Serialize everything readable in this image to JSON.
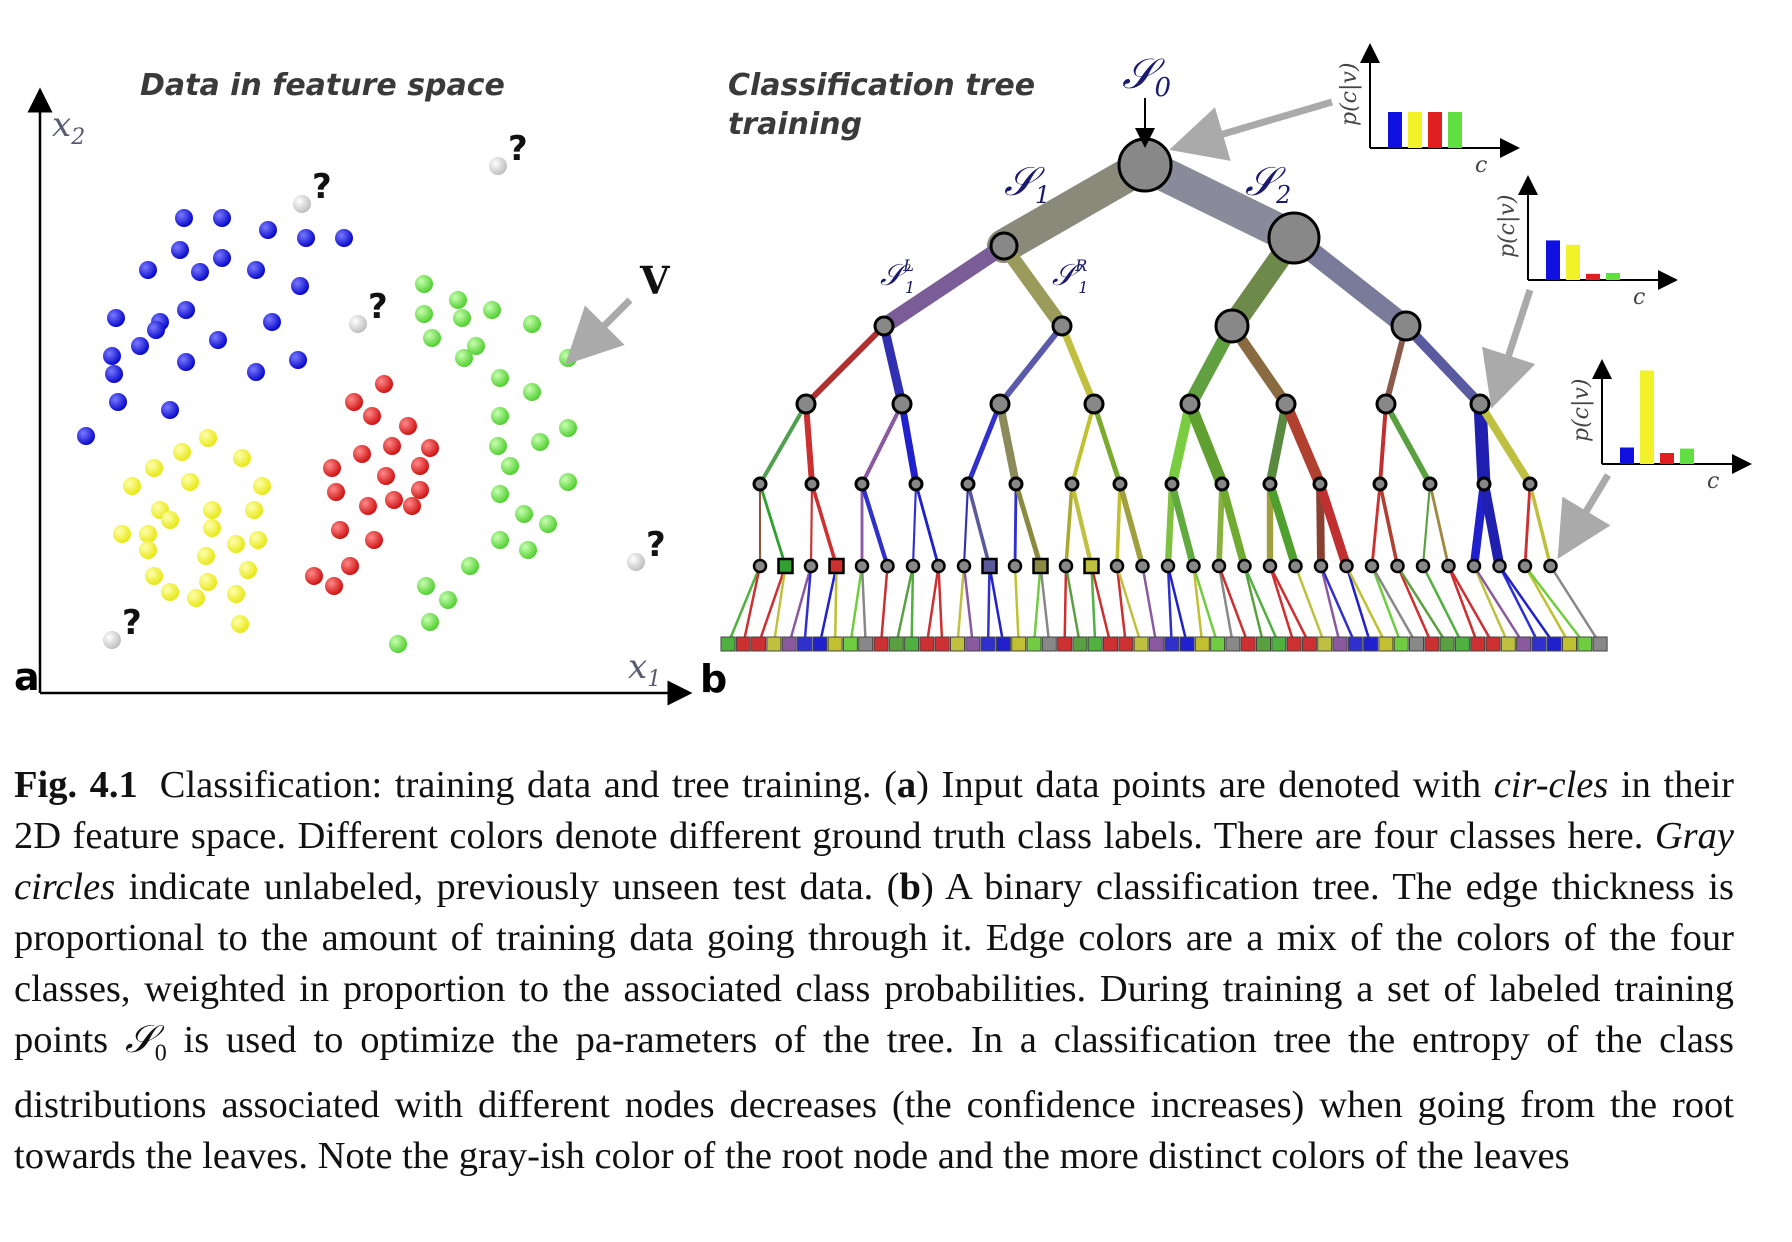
{
  "panel_a": {
    "title": "Data in feature space",
    "label": "a",
    "x_axis_label": "x1",
    "y_axis_label": "x2",
    "vector_label": "V",
    "unlabeled_mark": "?",
    "class_colors": {
      "blue": "#1010e0",
      "red": "#e02020",
      "yellow": "#f2f22a",
      "green": "#70e050",
      "gray": "#d8d8d8"
    }
  },
  "panel_b": {
    "title_line1": "Classification tree",
    "title_line2": "training",
    "label": "b",
    "root_label": "S0",
    "left_child_label": "S1",
    "right_child_label": "S2",
    "left_left_label": "S1L",
    "left_right_label": "S1R",
    "hist_y_label": "p(c|v)",
    "hist_x_label": "c",
    "histograms": [
      {
        "name": "root",
        "values": [
          0.25,
          0.25,
          0.25,
          0.25
        ]
      },
      {
        "name": "internal",
        "values": [
          0.45,
          0.4,
          0.07,
          0.08
        ]
      },
      {
        "name": "leaf",
        "values": [
          0.15,
          0.85,
          0.1,
          0.14
        ]
      }
    ]
  },
  "caption": {
    "label": "Fig. 4.1",
    "t1": "Classification: training data and tree training. (",
    "a": "a",
    "t2": ") Input data points are denoted with ",
    "i1": "cir-cles",
    "t3": " in their 2D feature space. Different colors denote different ground truth class labels. There are four classes here. ",
    "i2": "Gray circles",
    "t4": " indicate unlabeled, previously unseen test data. (",
    "b": "b",
    "t5": ") A binary classification tree. The edge thickness is proportional to the amount of training data going through it. Edge colors are a mix of the colors of the four classes, weighted in proportion to the associated class probabilities. During training a set of labeled training points ",
    "s0": "S0",
    "t6": " is used to optimize the pa-rameters of the tree. In a classification tree the entropy of the class distributions associated with different nodes decreases (the confidence increases) when going from the root towards the leaves. Note the gray-ish color of the root node and the more distinct colors of the leaves"
  }
}
